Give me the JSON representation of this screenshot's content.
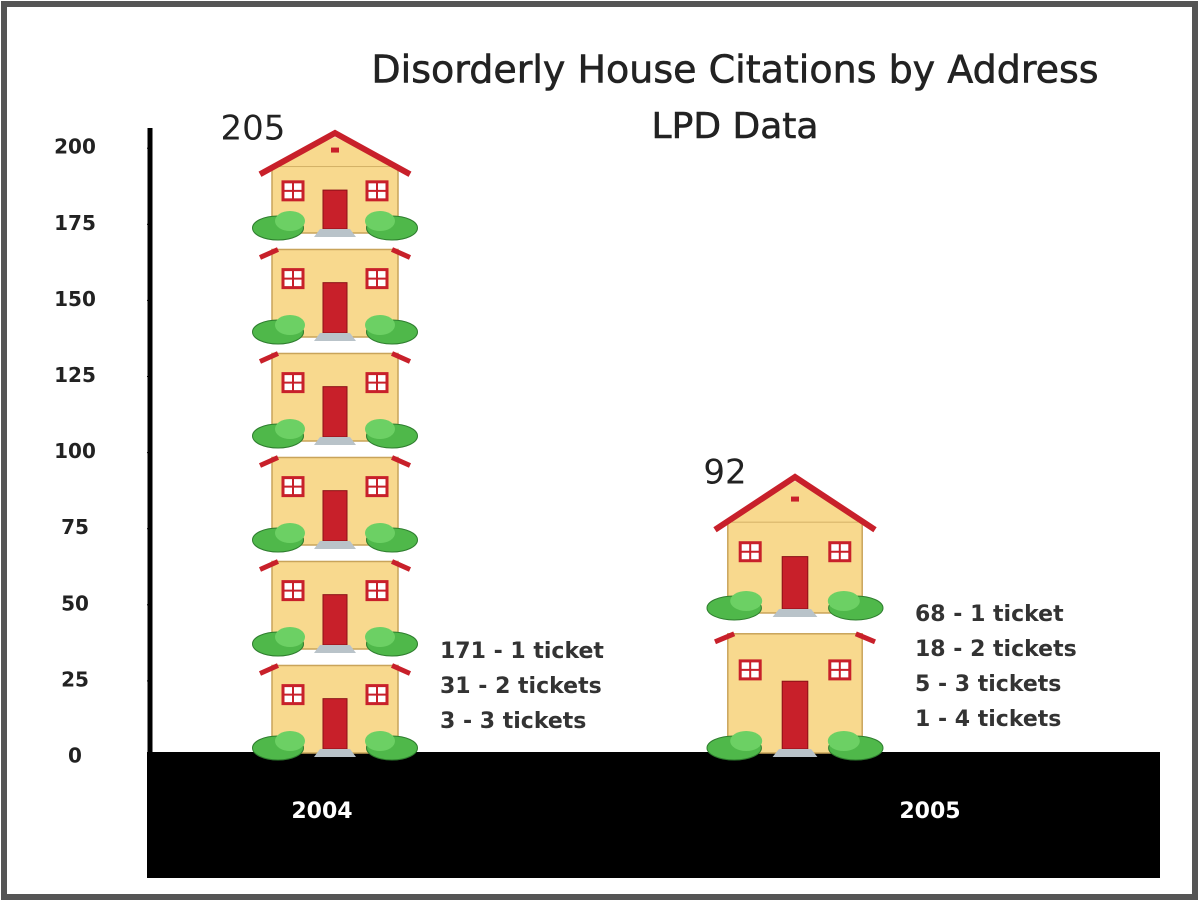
{
  "chart_data": {
    "type": "pictograph",
    "title": "Disorderly House Citations by Address",
    "subtitle": "LPD Data",
    "categories": [
      "2004",
      "2005"
    ],
    "values": [
      205,
      92
    ],
    "ylim": [
      0,
      205
    ],
    "yticks": [
      0,
      25,
      50,
      75,
      100,
      125,
      150,
      175,
      200
    ],
    "annotations": [
      [
        "171 - 1 ticket",
        "31 - 2 tickets",
        "3 - 3 tickets"
      ],
      [
        "68 - 1 ticket",
        "18 - 2 tickets",
        "5 - 3 tickets",
        "1 - 4 tickets"
      ]
    ]
  }
}
